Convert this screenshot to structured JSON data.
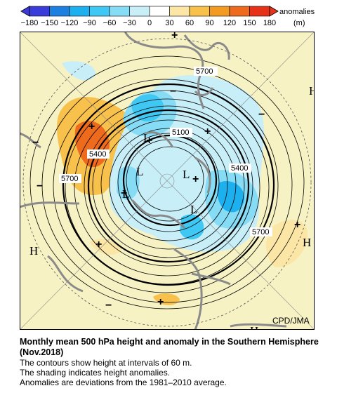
{
  "colorbar": {
    "unit_label": "anomalies",
    "unit": "(m)",
    "ticks": [
      "−180",
      "−150",
      "−120",
      "−90",
      "−60",
      "−30",
      "0",
      "30",
      "60",
      "90",
      "120",
      "150",
      "180"
    ],
    "colors": [
      "#3b3bd9",
      "#1f7fe0",
      "#1cb0ef",
      "#3ec8f3",
      "#86dcf5",
      "#c8eef8",
      "#ffffff",
      "#fbe6a6",
      "#f8c14b",
      "#f39a23",
      "#ee6a1c",
      "#e63318"
    ]
  },
  "map": {
    "background": "#f6f2c4",
    "contour_labels": [
      "5700",
      "5100",
      "5400",
      "5400",
      "5700",
      "5400",
      "5700"
    ],
    "high_markers": [
      "H",
      "H",
      "H",
      "H"
    ],
    "low_markers": [
      "L",
      "L",
      "L",
      "L",
      "L"
    ],
    "credit": "CPD/JMA"
  },
  "caption": {
    "title": "Monthly mean 500 hPa height and anomaly in the Southern Hemisphere (Nov.2018)",
    "line1": "The contours show height at intervals of 60 m.",
    "line2": "The shading indicates height anomalies.",
    "line3": "Anomalies are deviations from the 1981–2010 average."
  }
}
